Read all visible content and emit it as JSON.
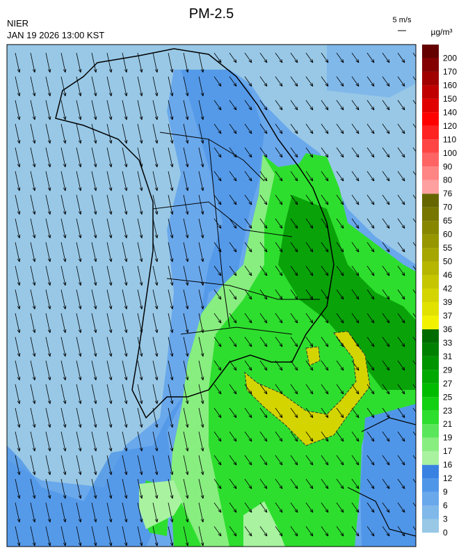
{
  "header": {
    "title": "PM-2.5",
    "agency": "NIER",
    "datetime": "JAN 19 2026 13:00 KST",
    "wind_scale": "5 m/s"
  },
  "legend": {
    "unit": "µg/m³",
    "labels": [
      "0",
      "3",
      "6",
      "9",
      "12",
      "16",
      "17",
      "19",
      "21",
      "23",
      "25",
      "27",
      "29",
      "31",
      "33",
      "36",
      "37",
      "39",
      "42",
      "46",
      "50",
      "55",
      "60",
      "65",
      "70",
      "76",
      "80",
      "90",
      "100",
      "110",
      "120",
      "140",
      "150",
      "160",
      "170",
      "200"
    ],
    "colors": [
      "#98c8e6",
      "#80b8ea",
      "#6aa8ec",
      "#5096e8",
      "#3a82e2",
      "#a8f2a0",
      "#88ee80",
      "#5ae65a",
      "#2ede2e",
      "#12d012",
      "#00bc00",
      "#00a800",
      "#009400",
      "#008000",
      "#006c00",
      "#f2f200",
      "#e2e200",
      "#d4d400",
      "#c6c600",
      "#b6b600",
      "#a6a600",
      "#969600",
      "#868600",
      "#767600",
      "#666600",
      "#ffa0a0",
      "#ff8484",
      "#ff6464",
      "#ff4444",
      "#ff2222",
      "#ff0000",
      "#e00000",
      "#c00000",
      "#a00000",
      "#840000",
      "#640000"
    ]
  }
}
